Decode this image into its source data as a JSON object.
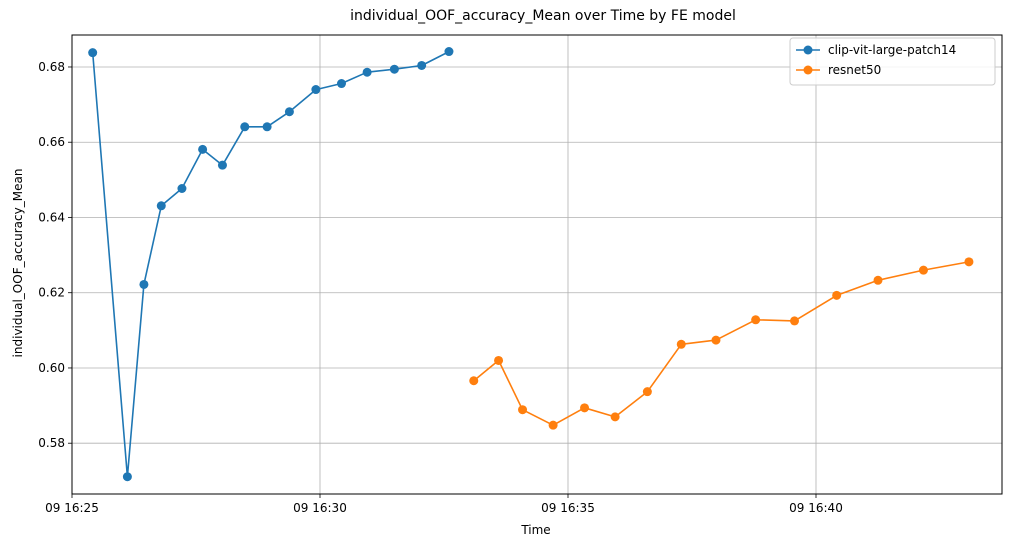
{
  "chart_data": {
    "type": "line",
    "title": "individual_OOF_accuracy_Mean over Time by FE model",
    "xlabel": "Time",
    "ylabel": "individual_OOF_accuracy_Mean",
    "xlim": [
      "09 16:25:00",
      "09 16:43:45"
    ],
    "ylim": [
      0.5665,
      0.6885
    ],
    "grid": true,
    "legend_position": "top-right",
    "x_ticks": [
      {
        "label": "09 16:25",
        "value": "09 16:25:00"
      },
      {
        "label": "09 16:30",
        "value": "09 16:30:00"
      },
      {
        "label": "09 16:35",
        "value": "09 16:35:00"
      },
      {
        "label": "09 16:40",
        "value": "09 16:40:00"
      }
    ],
    "y_ticks": [
      {
        "label": "0.58",
        "value": 0.58
      },
      {
        "label": "0.60",
        "value": 0.6
      },
      {
        "label": "0.62",
        "value": 0.62
      },
      {
        "label": "0.64",
        "value": 0.64
      },
      {
        "label": "0.66",
        "value": 0.66
      },
      {
        "label": "0.68",
        "value": 0.68
      }
    ],
    "series": [
      {
        "name": "clip-vit-large-patch14",
        "color": "#1f77b4",
        "points": [
          {
            "x": "09 16:25:25",
            "y": 0.6838
          },
          {
            "x": "09 16:26:07",
            "y": 0.5711
          },
          {
            "x": "09 16:26:27",
            "y": 0.6222
          },
          {
            "x": "09 16:26:48",
            "y": 0.6431
          },
          {
            "x": "09 16:27:13",
            "y": 0.6477
          },
          {
            "x": "09 16:27:38",
            "y": 0.6581
          },
          {
            "x": "09 16:28:02",
            "y": 0.6539
          },
          {
            "x": "09 16:28:29",
            "y": 0.6641
          },
          {
            "x": "09 16:28:56",
            "y": 0.6641
          },
          {
            "x": "09 16:29:23",
            "y": 0.6681
          },
          {
            "x": "09 16:29:55",
            "y": 0.674
          },
          {
            "x": "09 16:30:26",
            "y": 0.6756
          },
          {
            "x": "09 16:30:57",
            "y": 0.6786
          },
          {
            "x": "09 16:31:30",
            "y": 0.6794
          },
          {
            "x": "09 16:32:03",
            "y": 0.6804
          },
          {
            "x": "09 16:32:36",
            "y": 0.6841
          }
        ]
      },
      {
        "name": "resnet50",
        "color": "#ff7f0e",
        "points": [
          {
            "x": "09 16:33:06",
            "y": 0.5966
          },
          {
            "x": "09 16:33:36",
            "y": 0.602
          },
          {
            "x": "09 16:34:05",
            "y": 0.5889
          },
          {
            "x": "09 16:34:42",
            "y": 0.5848
          },
          {
            "x": "09 16:35:20",
            "y": 0.5894
          },
          {
            "x": "09 16:35:57",
            "y": 0.587
          },
          {
            "x": "09 16:36:36",
            "y": 0.5937
          },
          {
            "x": "09 16:37:17",
            "y": 0.6063
          },
          {
            "x": "09 16:37:59",
            "y": 0.6074
          },
          {
            "x": "09 16:38:47",
            "y": 0.6128
          },
          {
            "x": "09 16:39:34",
            "y": 0.6125
          },
          {
            "x": "09 16:40:25",
            "y": 0.6193
          },
          {
            "x": "09 16:41:15",
            "y": 0.6233
          },
          {
            "x": "09 16:42:10",
            "y": 0.626
          },
          {
            "x": "09 16:43:05",
            "y": 0.6282
          }
        ]
      }
    ]
  }
}
